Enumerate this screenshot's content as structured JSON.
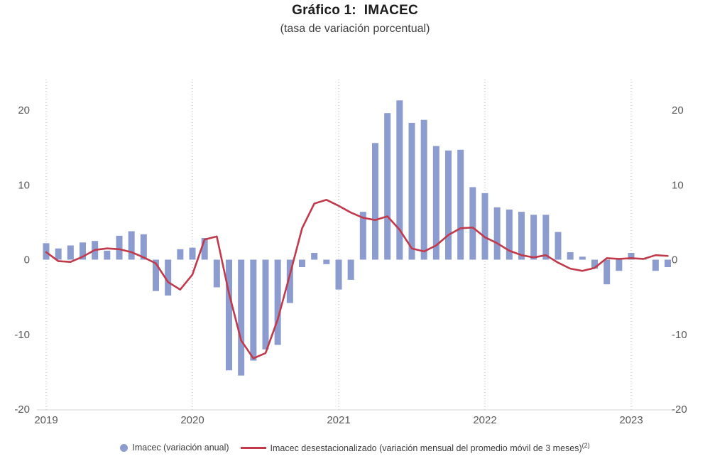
{
  "header": {
    "title": "Gráfico 1:  IMACEC",
    "subtitle": "(tasa de variación porcentual)"
  },
  "legend": {
    "items": [
      {
        "label": "Imacec (variación anual)",
        "marker": "circle",
        "color": "#8D9CCE"
      },
      {
        "label": "Imacec desestacionalizado (variación mensual del promedio móvil de 3 meses)",
        "superscript": "(2)",
        "marker": "line",
        "color": "#C13A4B"
      }
    ]
  },
  "chart_data": {
    "type": "bar",
    "title": "Gráfico 1: IMACEC",
    "subtitle": "(tasa de variación porcentual)",
    "categories": [
      "2019-01",
      "2019-02",
      "2019-03",
      "2019-04",
      "2019-05",
      "2019-06",
      "2019-07",
      "2019-08",
      "2019-09",
      "2019-10",
      "2019-11",
      "2019-12",
      "2020-01",
      "2020-02",
      "2020-03",
      "2020-04",
      "2020-05",
      "2020-06",
      "2020-07",
      "2020-08",
      "2020-09",
      "2020-10",
      "2020-11",
      "2020-12",
      "2021-01",
      "2021-02",
      "2021-03",
      "2021-04",
      "2021-05",
      "2021-06",
      "2021-07",
      "2021-08",
      "2021-09",
      "2021-10",
      "2021-11",
      "2021-12",
      "2022-01",
      "2022-02",
      "2022-03",
      "2022-04",
      "2022-05",
      "2022-06",
      "2022-07",
      "2022-08",
      "2022-09",
      "2022-10",
      "2022-11",
      "2022-12",
      "2023-01",
      "2023-02",
      "2023-03",
      "2023-04"
    ],
    "series": [
      {
        "name": "Imacec (variación anual)",
        "type": "bar",
        "color": "#8D9CCE",
        "values": [
          2.2,
          1.5,
          1.9,
          2.3,
          2.5,
          1.2,
          3.2,
          3.8,
          3.4,
          -4.2,
          -4.8,
          1.4,
          1.6,
          2.9,
          -3.7,
          -14.8,
          -15.5,
          -13.5,
          -12.0,
          -11.4,
          -5.8,
          -1.0,
          0.9,
          -0.6,
          -4.0,
          -2.7,
          6.4,
          15.6,
          19.6,
          21.3,
          18.3,
          18.7,
          15.2,
          14.6,
          14.7,
          9.7,
          8.9,
          7.0,
          6.7,
          6.4,
          6.0,
          6.0,
          3.7,
          1.0,
          0.4,
          -1.2,
          -3.3,
          -1.5,
          0.9,
          0.2,
          -1.5,
          -1.0
        ]
      },
      {
        "name": "Imacec desestacionalizado (variación mensual del promedio móvil de 3 meses)(2)",
        "type": "line",
        "color": "#C13A4B",
        "values": [
          1.0,
          -0.2,
          -0.3,
          0.4,
          1.3,
          1.5,
          1.4,
          1.0,
          0.3,
          -0.5,
          -3.0,
          -4.0,
          -2.0,
          2.7,
          3.1,
          -4.5,
          -10.8,
          -13.2,
          -12.5,
          -8.0,
          -2.0,
          4.2,
          7.5,
          8.0,
          7.2,
          6.3,
          5.6,
          5.3,
          5.8,
          4.0,
          1.5,
          1.1,
          1.9,
          3.3,
          4.2,
          4.3,
          3.0,
          2.2,
          1.2,
          0.6,
          0.3,
          0.6,
          -0.4,
          -1.2,
          -1.5,
          -1.1,
          0.2,
          0.1,
          0.2,
          0.1,
          0.6,
          0.5
        ]
      }
    ],
    "ylim": [
      -20,
      20
    ],
    "y_ticks": [
      20,
      10,
      0,
      -10,
      -20
    ],
    "x_ticks": [
      {
        "index": 0,
        "label": "2019"
      },
      {
        "index": 12,
        "label": "2020"
      },
      {
        "index": 24,
        "label": "2021"
      },
      {
        "index": 36,
        "label": "2022"
      },
      {
        "index": 48,
        "label": "2023"
      }
    ],
    "grid": "vertical-dotted",
    "legend_position": "bottom",
    "y_axis_sides": [
      "left",
      "right"
    ],
    "xlabel": "",
    "ylabel": ""
  }
}
